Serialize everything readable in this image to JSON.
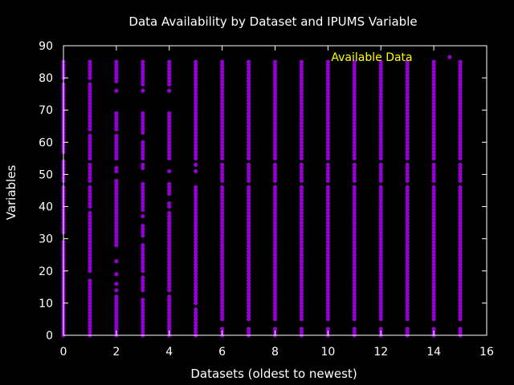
{
  "chart_data": {
    "type": "scatter",
    "title": "Data Availability by Dataset and IPUMS Variable",
    "xlabel": "Datasets (oldest to newest)",
    "ylabel": "Variables",
    "xlim": [
      0,
      16
    ],
    "ylim": [
      0,
      90
    ],
    "xticks": [
      "0",
      "2",
      "4",
      "6",
      "8",
      "10",
      "12",
      "14",
      "16"
    ],
    "yticks": [
      "0",
      "10",
      "20",
      "30",
      "40",
      "50",
      "60",
      "70",
      "80",
      "90"
    ],
    "legend": {
      "label": "Available Data",
      "position": "top-right"
    },
    "colors": {
      "background": "#000000",
      "axis": "#ffffff",
      "points": "#9400d3",
      "legend_text": "#ffff00"
    },
    "grid": false,
    "series": [
      {
        "name": "Available Data",
        "columns": [
          {
            "x": 0,
            "y": [
              [
                0,
                16
              ],
              [
                17,
                29
              ],
              [
                32,
                46
              ],
              [
                48,
                54
              ],
              [
                57,
                78
              ],
              [
                80,
                85
              ]
            ]
          },
          {
            "x": 1,
            "y": [
              [
                0,
                10
              ],
              [
                11,
                17
              ],
              [
                20,
                38
              ],
              [
                40,
                46
              ],
              [
                48,
                53
              ],
              [
                55,
                62
              ],
              [
                64,
                78
              ],
              [
                80,
                85
              ]
            ]
          },
          {
            "x": 2,
            "y": [
              0,
              1,
              2,
              3,
              4,
              5,
              6,
              7,
              8,
              9,
              10,
              11,
              12,
              14,
              16,
              19,
              23,
              28,
              29,
              30,
              31,
              32,
              33,
              34,
              35,
              36,
              37,
              38,
              39,
              40,
              41,
              42,
              43,
              44,
              45,
              46,
              47,
              48,
              51,
              52,
              55,
              56,
              57,
              58,
              59,
              60,
              61,
              62,
              64,
              65,
              66,
              67,
              68,
              69,
              76,
              79,
              80,
              81,
              82,
              83,
              84,
              85
            ]
          },
          {
            "x": 3,
            "y": [
              0,
              1,
              2,
              3,
              4,
              5,
              6,
              7,
              8,
              9,
              10,
              11,
              14,
              15,
              16,
              17,
              18,
              20,
              21,
              22,
              23,
              24,
              25,
              26,
              27,
              28,
              31,
              32,
              33,
              34,
              37,
              39,
              40,
              41,
              42,
              43,
              44,
              45,
              46,
              47,
              52,
              53,
              55,
              56,
              57,
              58,
              59,
              60,
              63,
              64,
              65,
              66,
              67,
              68,
              69,
              76,
              78,
              79,
              80,
              81,
              82,
              83,
              84,
              85
            ]
          },
          {
            "x": 4,
            "y": [
              0,
              1,
              2,
              3,
              4,
              5,
              6,
              7,
              8,
              9,
              10,
              11,
              12,
              14,
              15,
              16,
              17,
              18,
              19,
              20,
              21,
              22,
              23,
              24,
              25,
              26,
              27,
              28,
              29,
              30,
              31,
              32,
              33,
              34,
              35,
              36,
              37,
              38,
              40,
              41,
              44,
              45,
              46,
              47,
              51,
              55,
              56,
              57,
              58,
              59,
              60,
              61,
              62,
              63,
              64,
              65,
              66,
              67,
              68,
              69,
              76,
              78,
              79,
              80,
              81,
              82,
              83,
              84,
              85
            ]
          },
          {
            "x": 5,
            "y": [
              0,
              1,
              2,
              3,
              4,
              5,
              6,
              7,
              8,
              10,
              11,
              12,
              13,
              14,
              15,
              16,
              17,
              18,
              19,
              20,
              21,
              22,
              23,
              24,
              25,
              26,
              27,
              28,
              29,
              30,
              31,
              32,
              33,
              34,
              35,
              36,
              37,
              38,
              39,
              40,
              41,
              42,
              43,
              44,
              45,
              46,
              51,
              53,
              55,
              56,
              57,
              58,
              59,
              60,
              61,
              62,
              63,
              64,
              65,
              66,
              67,
              68,
              69,
              70,
              71,
              72,
              73,
              74,
              75,
              76,
              77,
              78,
              79,
              80,
              81,
              82,
              83,
              84,
              85
            ]
          },
          {
            "x": 6,
            "y": [
              [
                0,
                2
              ],
              [
                5,
                12
              ],
              [
                13,
                16
              ],
              [
                17,
                34
              ],
              [
                35,
                46
              ],
              [
                48,
                53
              ],
              [
                55,
                85
              ]
            ]
          },
          {
            "x": 7,
            "y": [
              [
                0,
                2
              ],
              [
                5,
                12
              ],
              [
                13,
                16
              ],
              [
                17,
                34
              ],
              [
                35,
                46
              ],
              [
                48,
                53
              ],
              [
                55,
                85
              ]
            ]
          },
          {
            "x": 8,
            "y": [
              [
                0,
                2
              ],
              [
                5,
                12
              ],
              [
                13,
                16
              ],
              [
                17,
                34
              ],
              [
                35,
                46
              ],
              [
                48,
                53
              ],
              [
                55,
                85
              ]
            ]
          },
          {
            "x": 9,
            "y": [
              [
                0,
                2
              ],
              [
                5,
                12
              ],
              [
                13,
                16
              ],
              [
                17,
                34
              ],
              [
                35,
                46
              ],
              [
                48,
                53
              ],
              [
                55,
                85
              ]
            ]
          },
          {
            "x": 10,
            "y": [
              [
                0,
                2
              ],
              [
                5,
                12
              ],
              [
                13,
                16
              ],
              [
                17,
                34
              ],
              [
                35,
                46
              ],
              [
                48,
                53
              ],
              [
                55,
                85
              ]
            ]
          },
          {
            "x": 11,
            "y": [
              [
                0,
                2
              ],
              [
                5,
                12
              ],
              [
                13,
                16
              ],
              [
                17,
                34
              ],
              [
                35,
                46
              ],
              [
                48,
                53
              ],
              [
                55,
                85
              ]
            ]
          },
          {
            "x": 12,
            "y": [
              [
                0,
                2
              ],
              [
                5,
                12
              ],
              [
                13,
                16
              ],
              [
                17,
                34
              ],
              [
                35,
                46
              ],
              [
                48,
                53
              ],
              [
                55,
                85
              ]
            ]
          },
          {
            "x": 13,
            "y": [
              [
                0,
                2
              ],
              [
                5,
                12
              ],
              [
                13,
                16
              ],
              [
                17,
                34
              ],
              [
                35,
                46
              ],
              [
                48,
                53
              ],
              [
                55,
                85
              ]
            ]
          },
          {
            "x": 14,
            "y": [
              [
                0,
                2
              ],
              [
                5,
                12
              ],
              [
                13,
                16
              ],
              [
                17,
                34
              ],
              [
                35,
                46
              ],
              [
                48,
                53
              ],
              [
                55,
                85
              ]
            ]
          },
          {
            "x": 15,
            "y": [
              [
                0,
                2
              ],
              [
                5,
                12
              ],
              [
                13,
                16
              ],
              [
                17,
                34
              ],
              [
                35,
                46
              ],
              [
                48,
                53
              ],
              [
                55,
                85
              ]
            ]
          }
        ],
        "extra_points": [
          {
            "x": 14.6,
            "y": 86.5
          }
        ]
      }
    ]
  }
}
